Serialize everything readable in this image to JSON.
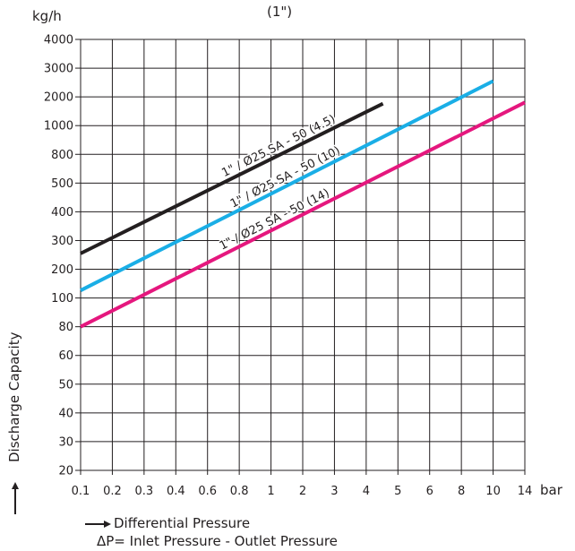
{
  "chart_data": {
    "type": "line",
    "title": "(1\")",
    "ylabel": "Discharge Capacity",
    "yunit": "kg/h",
    "xlabel": "Differential Pressure",
    "xunit": "bar",
    "subtitle": "ΔP= Inlet Pressure - Outlet Pressure",
    "grid": true,
    "x_ticks": [
      "0.1",
      "0.2",
      "0.3",
      "0.4",
      "0.6",
      "0.8",
      "1",
      "2",
      "3",
      "4",
      "5",
      "6",
      "8",
      "10",
      "14"
    ],
    "y_ticks": [
      "20",
      "30",
      "40",
      "50",
      "60",
      "80",
      "100",
      "200",
      "300",
      "400",
      "500",
      "800",
      "1000",
      "2000",
      "3000",
      "4000"
    ],
    "series": [
      {
        "name": "1\" / Ø25 SA - 50 (4.5)",
        "color": "#231f20",
        "x": [
          "0.1",
          "4.5"
        ],
        "y": [
          "250",
          "1700"
        ]
      },
      {
        "name": "1\" / Ø25 SA - 50 (10)",
        "color": "#1aaee6",
        "x": [
          "0.1",
          "10"
        ],
        "y": [
          "120",
          "2500"
        ]
      },
      {
        "name": "1\" / Ø25 SA - 50 (14)",
        "color": "#e5177e",
        "x": [
          "0.1",
          "14"
        ],
        "y": [
          "80",
          "1750"
        ]
      }
    ]
  }
}
